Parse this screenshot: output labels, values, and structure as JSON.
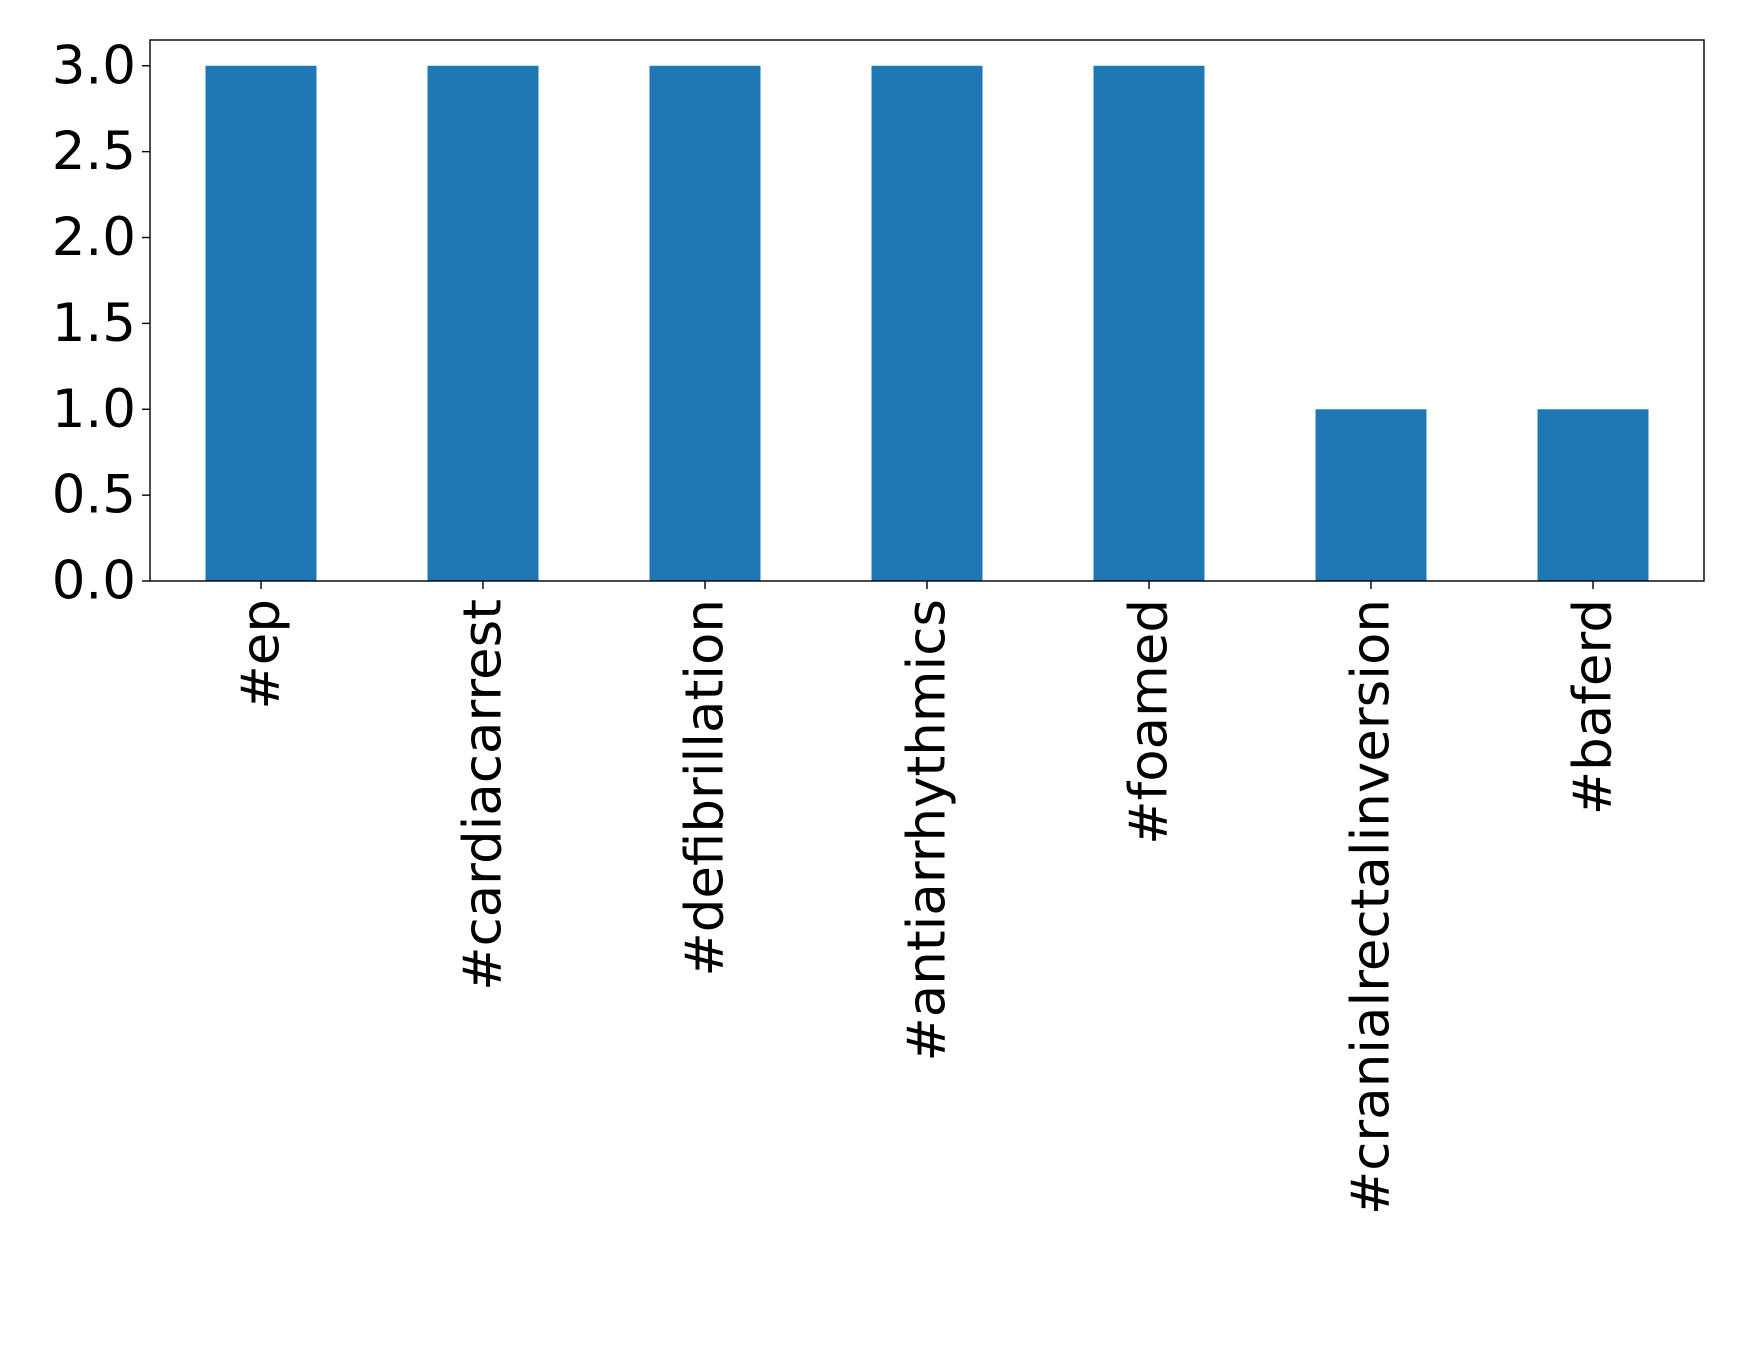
{
  "chart_data": {
    "type": "bar",
    "title": "",
    "xlabel": "",
    "ylabel": "",
    "categories": [
      "#ep",
      "#cardiacarrest",
      "#defibrillation",
      "#antiarrhythmics",
      "#foamed",
      "#cranialrectalinversion",
      "#baferd"
    ],
    "values": [
      3,
      3,
      3,
      3,
      3,
      1,
      1
    ],
    "ylim": [
      0,
      3.15
    ],
    "yticks": [
      0.0,
      0.5,
      1.0,
      1.5,
      2.0,
      2.5,
      3.0
    ],
    "ytick_labels": [
      "0.0",
      "0.5",
      "1.0",
      "1.5",
      "2.0",
      "2.5",
      "3.0"
    ],
    "grid": false,
    "legend": "none",
    "bar_color": "#1f77b4"
  }
}
